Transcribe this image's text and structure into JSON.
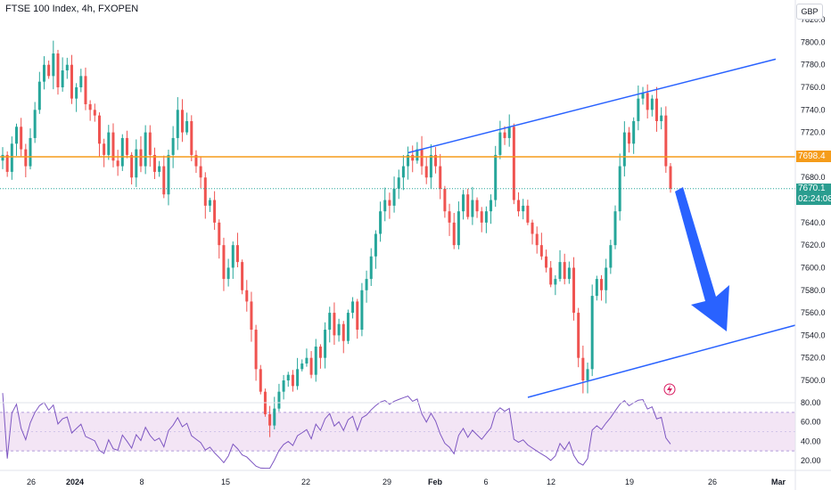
{
  "header": {
    "title": "FTSE 100 Index, 4h, FXOPEN",
    "currency": "GBP"
  },
  "colors": {
    "up": "#26a69a",
    "down": "#ef5350",
    "channel": "#2962ff",
    "level": "#f59c1a",
    "arrow": "#2962ff",
    "rsi": "#7e57c2",
    "rsi_band": "#f3e5f5"
  },
  "price_axis": {
    "ticks": [
      7820.0,
      7800.0,
      7780.0,
      7760.0,
      7740.0,
      7720.0,
      7680.0,
      7660.0,
      7640.0,
      7620.0,
      7600.0,
      7580.0,
      7560.0,
      7540.0,
      7520.0,
      7500.0
    ],
    "tick_labels": [
      "7820.0",
      "7800.0",
      "7780.0",
      "7760.0",
      "7740.0",
      "7720.0",
      "7680.0",
      "7660.0",
      "7640.0",
      "7620.0",
      "7600.0",
      "7580.0",
      "7560.0",
      "7540.0",
      "7520.0",
      "7500.0"
    ]
  },
  "rsi_axis": {
    "ticks": [
      80,
      60,
      40,
      20
    ],
    "tick_labels": [
      "80.00",
      "60.00",
      "40.00",
      "20.00"
    ]
  },
  "time_axis": {
    "labels": [
      "26",
      "2024",
      "8",
      "15",
      "22",
      "29",
      "Feb",
      "6",
      "12",
      "19",
      "26",
      "Mar"
    ]
  },
  "current_price": {
    "value": 7670.1,
    "label": "7670.1",
    "countdown": "02:24:08"
  },
  "level_line": {
    "value": 7698.4,
    "label": "7698.4"
  },
  "chart_data": {
    "type": "candlestick",
    "title": "FTSE 100 Index, 4h, FXOPEN",
    "ylim": [
      7483,
      7830
    ],
    "close_series": [
      7700,
      7685,
      7710,
      7725,
      7705,
      7690,
      7715,
      7740,
      7765,
      7780,
      7770,
      7790,
      7760,
      7775,
      7780,
      7750,
      7760,
      7770,
      7745,
      7740,
      7735,
      7710,
      7700,
      7720,
      7695,
      7690,
      7715,
      7700,
      7680,
      7705,
      7690,
      7720,
      7700,
      7685,
      7690,
      7665,
      7700,
      7715,
      7740,
      7720,
      7730,
      7700,
      7690,
      7680,
      7655,
      7660,
      7640,
      7620,
      7590,
      7600,
      7620,
      7605,
      7580,
      7570,
      7545,
      7510,
      7490,
      7470,
      7460,
      7475,
      7490,
      7500,
      7505,
      7495,
      7510,
      7515,
      7520,
      7505,
      7530,
      7520,
      7545,
      7560,
      7540,
      7550,
      7535,
      7560,
      7570,
      7545,
      7580,
      7590,
      7610,
      7630,
      7650,
      7660,
      7655,
      7670,
      7680,
      7690,
      7700,
      7695,
      7705,
      7690,
      7680,
      7700,
      7690,
      7670,
      7650,
      7640,
      7620,
      7650,
      7665,
      7645,
      7660,
      7650,
      7640,
      7650,
      7660,
      7700,
      7720,
      7715,
      7725,
      7660,
      7650,
      7655,
      7640,
      7630,
      7620,
      7610,
      7600,
      7585,
      7590,
      7605,
      7590,
      7600,
      7560,
      7520,
      7500,
      7510,
      7575,
      7590,
      7580,
      7600,
      7620,
      7650,
      7690,
      7720,
      7710,
      7730,
      7750,
      7755,
      7740,
      7750,
      7730,
      7735,
      7690,
      7670
    ]
  }
}
